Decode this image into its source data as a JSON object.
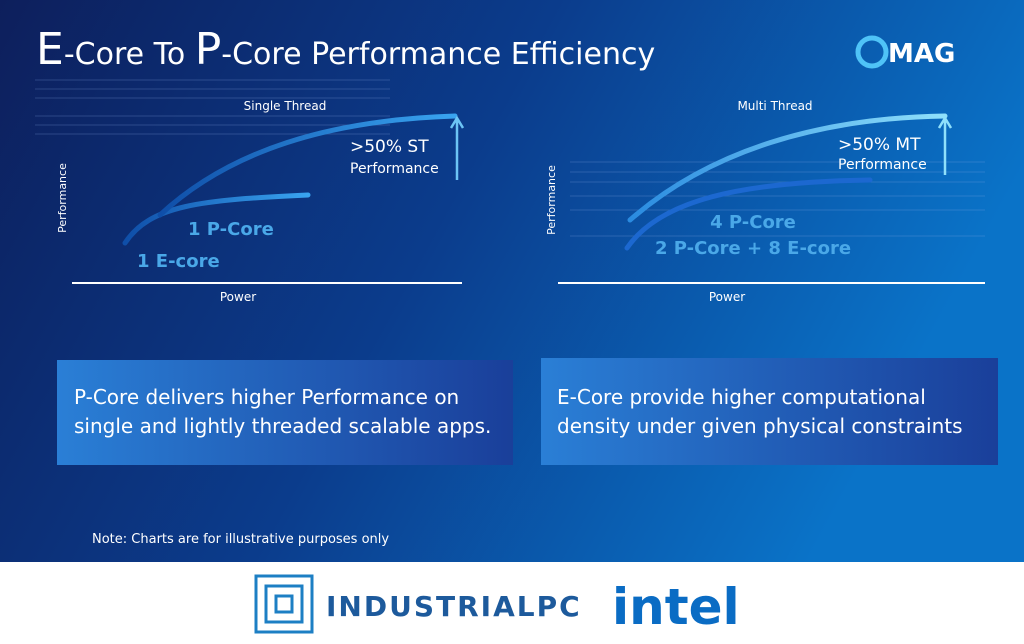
{
  "header": {
    "title_parts": [
      "E",
      "-Core To ",
      "P",
      "-Core Performance Efficiency"
    ],
    "logo": "MAG"
  },
  "charts": [
    {
      "title": "Single Thread",
      "y_label": "Performance",
      "x_label": "Power",
      "callout_line1": ">50% ST",
      "callout_line2": "Performance",
      "series_labels": [
        "1 P-Core",
        "1 E-core"
      ]
    },
    {
      "title": "Multi Thread",
      "y_label": "Performance",
      "x_label": "Power",
      "callout_line1": ">50% MT",
      "callout_line2": "Performance",
      "series_labels": [
        "4 P-Core",
        "2 P-Core + 8 E-core"
      ]
    }
  ],
  "boxes": [
    {
      "lines": [
        "P-Core delivers higher Performance on",
        "single and lightly threaded scalable apps."
      ]
    },
    {
      "lines": [
        "E-Core provide higher computational",
        "density under given physical constraints"
      ]
    }
  ],
  "note": "Note: Charts are for illustrative purposes only",
  "footer": {
    "brand": "INDUSTRIALPC",
    "partner": "intel"
  }
}
